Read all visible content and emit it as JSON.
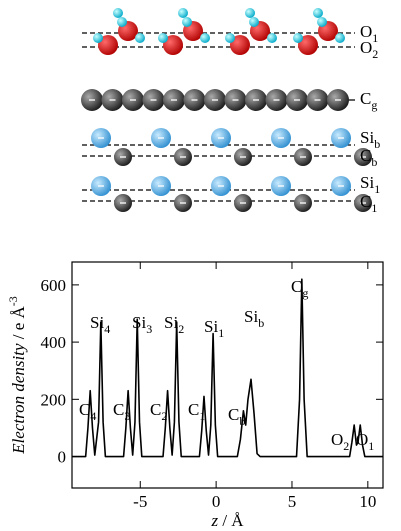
{
  "structure_labels": [
    {
      "main": "O",
      "sub": "1"
    },
    {
      "main": "O",
      "sub": "2"
    },
    {
      "main": "C",
      "sub": "g"
    },
    {
      "main": "Si",
      "sub": "b"
    },
    {
      "main": "C",
      "sub": "b"
    },
    {
      "main": "Si",
      "sub": "1"
    },
    {
      "main": "C",
      "sub": "1"
    }
  ],
  "chart_data": {
    "type": "line",
    "xlabel": {
      "italic": "z",
      "rest": " / Å"
    },
    "ylabel": {
      "italic": "Electron density",
      "rest": " / e Å",
      "sup": "-3"
    },
    "x": [
      -9.5,
      -8.6,
      -8.45,
      -8.3,
      -8.15,
      -8.0,
      -7.75,
      -7.6,
      -7.45,
      -7.3,
      -6.1,
      -5.95,
      -5.8,
      -5.65,
      -5.5,
      -5.35,
      -5.2,
      -5.05,
      -4.9,
      -3.5,
      -3.35,
      -3.2,
      -3.05,
      -2.9,
      -2.75,
      -2.6,
      -2.45,
      -2.3,
      -1.1,
      -0.95,
      -0.8,
      -0.65,
      -0.5,
      -0.35,
      -0.2,
      -0.05,
      0.1,
      1.4,
      1.6,
      1.8,
      1.95,
      2.1,
      2.3,
      2.5,
      2.7,
      2.9,
      5.3,
      5.5,
      5.65,
      5.8,
      6.0,
      8.8,
      8.95,
      9.1,
      9.25,
      9.35,
      9.5,
      9.65,
      9.8,
      11
    ],
    "series": [
      {
        "name": "Electron density",
        "color": "#000000",
        "values": [
          0,
          0,
          100,
          230,
          100,
          5,
          120,
          470,
          120,
          0,
          0,
          100,
          230,
          100,
          5,
          120,
          480,
          120,
          0,
          0,
          100,
          230,
          100,
          5,
          120,
          470,
          120,
          0,
          0,
          90,
          210,
          90,
          5,
          110,
          430,
          110,
          0,
          0,
          60,
          160,
          110,
          200,
          270,
          150,
          10,
          0,
          0,
          200,
          620,
          200,
          0,
          0,
          50,
          110,
          40,
          50,
          110,
          40,
          0,
          0
        ]
      }
    ],
    "xlim": [
      -9.5,
      11
    ],
    "ylim": [
      -110,
      680
    ],
    "xticks": [
      -5,
      0,
      5,
      10
    ],
    "yticks": [
      0,
      200,
      400,
      600
    ],
    "annotations": [
      {
        "main": "C",
        "sub": "4"
      },
      {
        "main": "Si",
        "sub": "4"
      },
      {
        "main": "C",
        "sub": "3"
      },
      {
        "main": "Si",
        "sub": "3"
      },
      {
        "main": "C",
        "sub": "2"
      },
      {
        "main": "Si",
        "sub": "2"
      },
      {
        "main": "C",
        "sub": "1"
      },
      {
        "main": "Si",
        "sub": "1"
      },
      {
        "main": "C",
        "sub": "b"
      },
      {
        "main": "Si",
        "sub": "b"
      },
      {
        "main": "C",
        "sub": "g"
      },
      {
        "main": "O",
        "sub": "2"
      },
      {
        "main": "O",
        "sub": "1"
      }
    ]
  }
}
